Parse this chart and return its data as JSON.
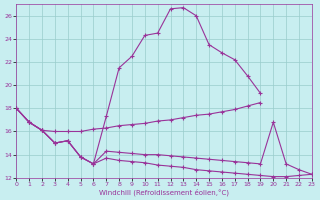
{
  "xlabel": "Windchill (Refroidissement éolien,°C)",
  "bg_color": "#c8eef0",
  "line_color": "#993399",
  "grid_color": "#99cccc",
  "xlim": [
    0,
    23
  ],
  "ylim": [
    12,
    27
  ],
  "yticks": [
    12,
    14,
    16,
    18,
    20,
    22,
    24,
    26
  ],
  "xticks": [
    0,
    1,
    2,
    3,
    4,
    5,
    6,
    7,
    8,
    9,
    10,
    11,
    12,
    13,
    14,
    15,
    16,
    17,
    18,
    19,
    20,
    21,
    22,
    23
  ],
  "curve1_x": [
    0,
    1,
    2,
    3,
    4,
    5,
    6,
    7,
    8,
    9,
    10,
    11,
    12,
    13,
    14,
    15,
    16,
    17,
    18,
    19
  ],
  "curve1_y": [
    18.0,
    16.8,
    16.1,
    15.0,
    15.2,
    13.8,
    13.2,
    17.3,
    21.5,
    22.5,
    24.3,
    24.5,
    26.6,
    26.7,
    26.0,
    23.5,
    22.8,
    22.2,
    20.8,
    19.3
  ],
  "curve2_x": [
    0,
    1,
    2,
    3,
    4,
    5,
    6,
    7,
    8,
    9,
    10,
    11,
    12,
    13,
    14,
    15,
    16,
    17,
    18,
    19
  ],
  "curve2_y": [
    18.0,
    16.8,
    16.1,
    16.0,
    16.0,
    16.0,
    16.2,
    16.3,
    16.5,
    16.6,
    16.7,
    16.9,
    17.0,
    17.2,
    17.4,
    17.5,
    17.7,
    17.9,
    18.2,
    18.5
  ],
  "curve3_x": [
    0,
    1,
    2,
    3,
    4,
    5,
    6,
    7,
    8,
    9,
    10,
    11,
    12,
    13,
    14,
    15,
    16,
    17,
    18,
    19,
    20,
    21,
    22,
    23
  ],
  "curve3_y": [
    18.0,
    16.8,
    16.1,
    15.0,
    15.2,
    13.8,
    13.2,
    13.7,
    13.5,
    13.4,
    13.3,
    13.1,
    13.0,
    12.9,
    12.7,
    12.6,
    12.5,
    12.4,
    12.3,
    12.2,
    12.1,
    12.1,
    12.2,
    12.3
  ],
  "curve4_x": [
    0,
    1,
    2,
    3,
    4,
    5,
    6,
    7,
    8,
    9,
    10,
    11,
    12,
    13,
    14,
    15,
    16,
    17,
    18,
    19,
    20,
    21,
    22,
    23
  ],
  "curve4_y": [
    18.0,
    16.8,
    16.1,
    15.0,
    15.2,
    13.8,
    13.2,
    14.3,
    14.2,
    14.1,
    14.0,
    14.0,
    13.9,
    13.8,
    13.7,
    13.6,
    13.5,
    13.4,
    13.3,
    13.2,
    16.8,
    13.2,
    12.7,
    12.3
  ]
}
